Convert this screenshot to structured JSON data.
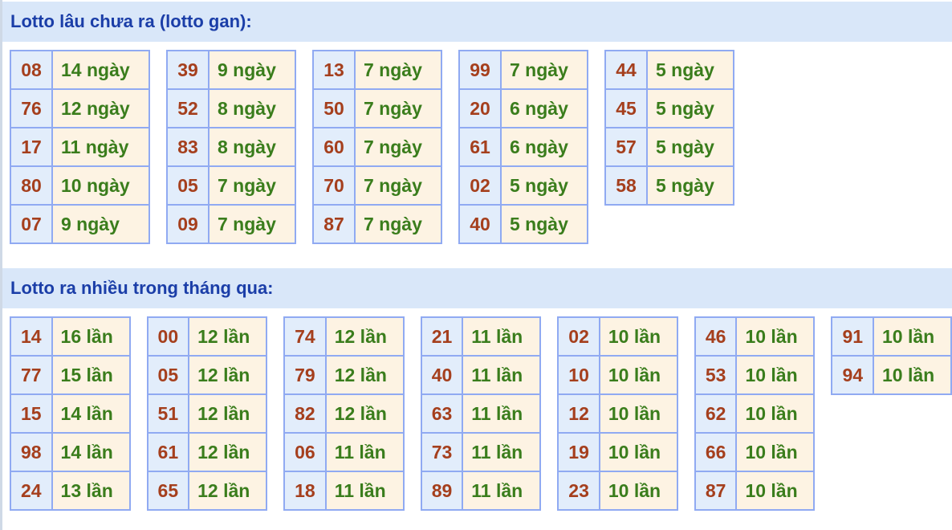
{
  "section1": {
    "title": "Lotto lâu chưa ra (lotto gan):",
    "tables": [
      [
        [
          "08",
          "14 ngày"
        ],
        [
          "76",
          "12 ngày"
        ],
        [
          "17",
          "11 ngày"
        ],
        [
          "80",
          "10 ngày"
        ],
        [
          "07",
          "9 ngày"
        ]
      ],
      [
        [
          "39",
          "9 ngày"
        ],
        [
          "52",
          "8 ngày"
        ],
        [
          "83",
          "8 ngày"
        ],
        [
          "05",
          "7 ngày"
        ],
        [
          "09",
          "7 ngày"
        ]
      ],
      [
        [
          "13",
          "7 ngày"
        ],
        [
          "50",
          "7 ngày"
        ],
        [
          "60",
          "7 ngày"
        ],
        [
          "70",
          "7 ngày"
        ],
        [
          "87",
          "7 ngày"
        ]
      ],
      [
        [
          "99",
          "7 ngày"
        ],
        [
          "20",
          "6 ngày"
        ],
        [
          "61",
          "6 ngày"
        ],
        [
          "02",
          "5 ngày"
        ],
        [
          "40",
          "5 ngày"
        ]
      ],
      [
        [
          "44",
          "5 ngày"
        ],
        [
          "45",
          "5 ngày"
        ],
        [
          "57",
          "5 ngày"
        ],
        [
          "58",
          "5 ngày"
        ]
      ]
    ]
  },
  "section2": {
    "title": "Lotto ra nhiều trong tháng qua:",
    "tables": [
      [
        [
          "14",
          "16 lần"
        ],
        [
          "77",
          "15 lần"
        ],
        [
          "15",
          "14 lần"
        ],
        [
          "98",
          "14 lần"
        ],
        [
          "24",
          "13 lần"
        ]
      ],
      [
        [
          "00",
          "12 lần"
        ],
        [
          "05",
          "12 lần"
        ],
        [
          "51",
          "12 lần"
        ],
        [
          "61",
          "12 lần"
        ],
        [
          "65",
          "12 lần"
        ]
      ],
      [
        [
          "74",
          "12 lần"
        ],
        [
          "79",
          "12 lần"
        ],
        [
          "82",
          "12 lần"
        ],
        [
          "06",
          "11 lần"
        ],
        [
          "18",
          "11 lần"
        ]
      ],
      [
        [
          "21",
          "11 lần"
        ],
        [
          "40",
          "11 lần"
        ],
        [
          "63",
          "11 lần"
        ],
        [
          "73",
          "11 lần"
        ],
        [
          "89",
          "11 lần"
        ]
      ],
      [
        [
          "02",
          "10 lần"
        ],
        [
          "10",
          "10 lần"
        ],
        [
          "12",
          "10 lần"
        ],
        [
          "19",
          "10 lần"
        ],
        [
          "23",
          "10 lần"
        ]
      ],
      [
        [
          "46",
          "10 lần"
        ],
        [
          "53",
          "10 lần"
        ],
        [
          "62",
          "10 lần"
        ],
        [
          "66",
          "10 lần"
        ],
        [
          "87",
          "10 lần"
        ]
      ],
      [
        [
          "91",
          "10 lần"
        ],
        [
          "94",
          "10 lần"
        ]
      ]
    ]
  },
  "colors": {
    "header_bg": "#d9e7f9",
    "header_text": "#1b3ea8",
    "number": "#a53f1d",
    "value": "#3a7d1c",
    "border": "#90aaf2"
  }
}
